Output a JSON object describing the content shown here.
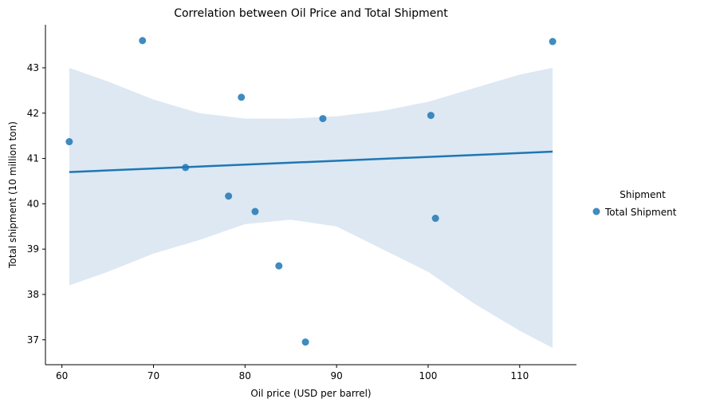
{
  "chart_data": {
    "type": "scatter",
    "title": "Correlation between Oil Price and Total Shipment",
    "xlabel": "Oil price (USD per barrel)",
    "ylabel": "Total shipment (10 million ton)",
    "xlim": [
      58.2,
      116.2
    ],
    "ylim": [
      36.45,
      43.95
    ],
    "xticks": [
      60,
      70,
      80,
      90,
      100,
      110
    ],
    "yticks": [
      37,
      38,
      39,
      40,
      41,
      42,
      43
    ],
    "grid": false,
    "legend": {
      "title": "Shipment",
      "position": "right"
    },
    "series": [
      {
        "name": "Total Shipment",
        "color": "#1f77b4",
        "x": [
          60.8,
          68.8,
          73.5,
          78.2,
          79.6,
          81.1,
          83.7,
          86.6,
          88.5,
          100.3,
          100.8,
          113.6
        ],
        "y": [
          41.37,
          43.6,
          40.8,
          40.17,
          42.35,
          39.83,
          38.63,
          36.95,
          41.88,
          41.95,
          39.68,
          43.58
        ]
      }
    ],
    "regression": {
      "color": "#1f77b4",
      "x": [
        60.8,
        113.6
      ],
      "y": [
        40.7,
        41.15
      ]
    },
    "confidence_band": {
      "color": "#dde8f3",
      "x": [
        60.8,
        65,
        70,
        75,
        80,
        85,
        90,
        95,
        100,
        105,
        110,
        113.6
      ],
      "upper": [
        43.0,
        42.7,
        42.3,
        42.0,
        41.88,
        41.88,
        41.93,
        42.05,
        42.25,
        42.55,
        42.85,
        43.0
      ],
      "lower": [
        38.2,
        38.5,
        38.9,
        39.2,
        39.55,
        39.65,
        39.5,
        39.0,
        38.5,
        37.8,
        37.2,
        36.82
      ]
    }
  }
}
